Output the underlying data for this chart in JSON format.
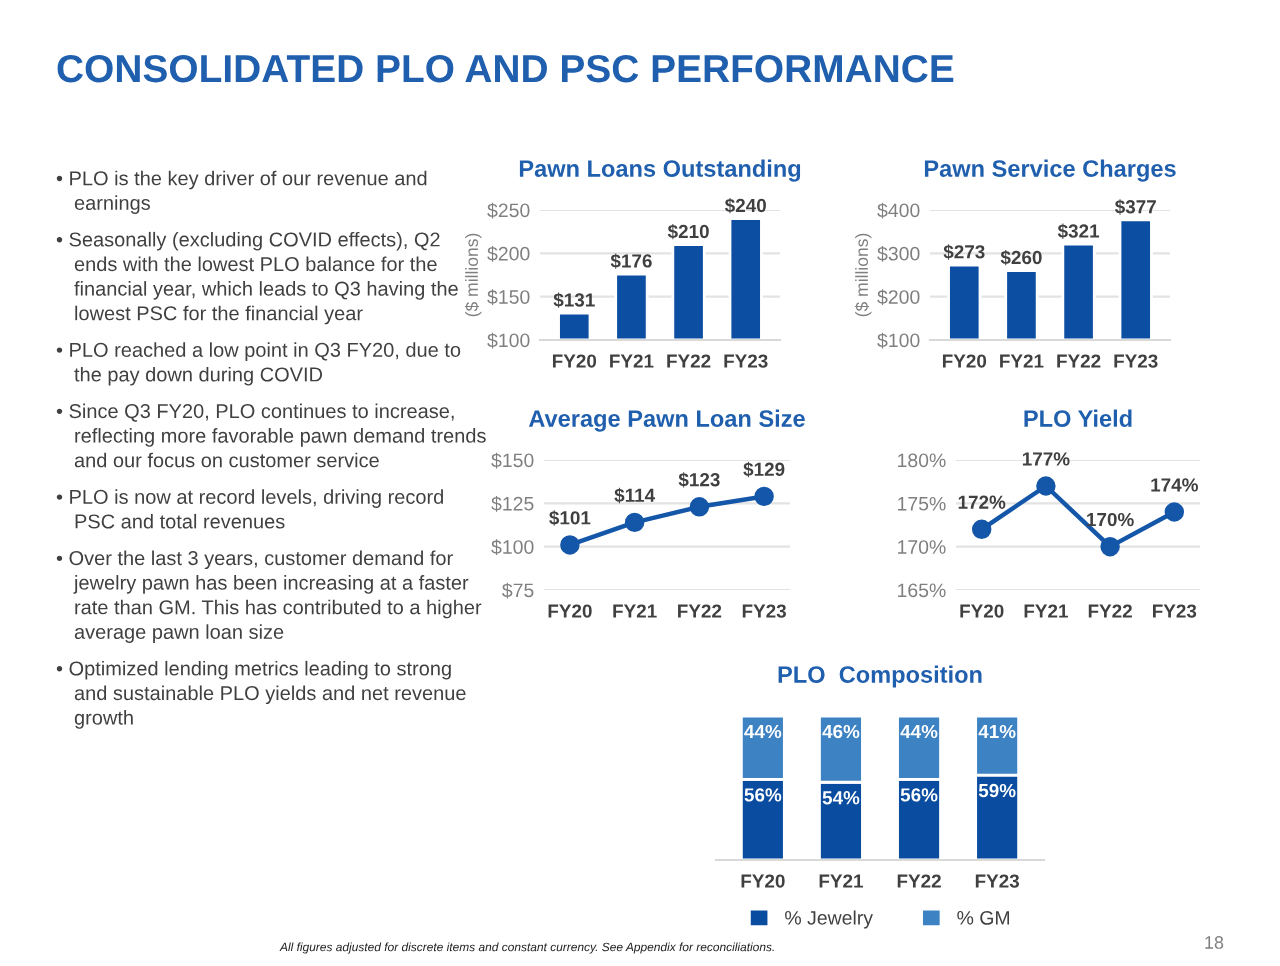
{
  "chart_data": [
    {
      "type": "other",
      "title": "CONSOLIDATED PLO AND PSC PERFORMANCE",
      "annotations": [
        "• PLO is the key driver of our revenue and earnings",
        "• Seasonally (excluding COVID effects), Q2 ends with the lowest PLO balance for the financial year, which leads to Q3 having the lowest PSC for the financial year",
        "• PLO reached a low point in Q3 FY20, due to the pay down during COVID",
        "• Since Q3 FY20, PLO continues to increase, reflecting more favorable pawn demand trends and our focus on customer service",
        "• PLO is now at record levels, driving record PSC and total revenues",
        "• Over the last 3 years, customer demand for jewelry pawn has been increasing at a faster rate than GM. This has contributed to a higher average pawn loan size",
        "• Optimized lending metrics leading to strong and sustainable PLO yields and net revenue growth"
      ]
    },
    {
      "type": "bar",
      "title": "Pawn Loans Outstanding",
      "ylabel": "($ millions)",
      "categories": [
        "FY20",
        "FY21",
        "FY22",
        "FY23"
      ],
      "values": [
        131,
        176,
        210,
        240
      ],
      "value_labels": [
        "$131",
        "$176",
        "$210",
        "$240"
      ],
      "color": "#0b4ea2",
      "ylim": [
        100,
        250
      ],
      "yticks": [
        {
          "value": 100,
          "label": "$100"
        },
        {
          "value": 150,
          "label": "$150"
        },
        {
          "value": 200,
          "label": "$200"
        },
        {
          "value": 250,
          "label": "$250"
        }
      ],
      "grid": "y"
    },
    {
      "type": "bar",
      "title": "Pawn Service Charges",
      "ylabel": "($ millions)",
      "categories": [
        "FY20",
        "FY21",
        "FY22",
        "FY23"
      ],
      "values": [
        273,
        260,
        321,
        377
      ],
      "value_labels": [
        "$273",
        "$260",
        "$321",
        "$377"
      ],
      "color": "#0b4ea2",
      "ylim": [
        100,
        400
      ],
      "yticks": [
        {
          "value": 100,
          "label": "$100"
        },
        {
          "value": 200,
          "label": "$200"
        },
        {
          "value": 300,
          "label": "$300"
        },
        {
          "value": 400,
          "label": "$400"
        }
      ],
      "grid": "y"
    },
    {
      "type": "line",
      "title": "Average Pawn Loan Size",
      "categories": [
        "FY20",
        "FY21",
        "FY22",
        "FY23"
      ],
      "values": [
        101,
        114,
        123,
        129
      ],
      "value_labels": [
        "$101",
        "$114",
        "$123",
        "$129"
      ],
      "color": "#1456a8",
      "marker": "circle",
      "line_style": "solid",
      "ylim": [
        75,
        150
      ],
      "yticks": [
        {
          "value": 75,
          "label": "$75"
        },
        {
          "value": 100,
          "label": "$100"
        },
        {
          "value": 125,
          "label": "$125"
        },
        {
          "value": 150,
          "label": "$150"
        }
      ],
      "grid": "y"
    },
    {
      "type": "line",
      "title": "PLO Yield",
      "categories": [
        "FY20",
        "FY21",
        "FY22",
        "FY23"
      ],
      "values": [
        172,
        177,
        170,
        174
      ],
      "value_labels": [
        "172%",
        "177%",
        "170%",
        "174%"
      ],
      "color": "#1456a8",
      "marker": "circle",
      "line_style": "solid",
      "ylim": [
        165,
        180
      ],
      "yticks": [
        {
          "value": 165,
          "label": "165%"
        },
        {
          "value": 170,
          "label": "170%"
        },
        {
          "value": 175,
          "label": "175%"
        },
        {
          "value": 180,
          "label": "180%"
        }
      ],
      "grid": "y"
    },
    {
      "type": "bar",
      "title": "PLO  Composition",
      "stacked": true,
      "categories": [
        "FY20",
        "FY21",
        "FY22",
        "FY23"
      ],
      "tick_labels": "x",
      "legend": "bottom",
      "series": [
        {
          "name": "% Jewelry",
          "color": "#0a4da0",
          "values": [
            56,
            54,
            56,
            59
          ],
          "value_labels": [
            "56%",
            "54%",
            "56%",
            "59%"
          ]
        },
        {
          "name": "% GM",
          "color": "#3d82c2",
          "values": [
            44,
            46,
            44,
            41
          ],
          "value_labels": [
            "44%",
            "46%",
            "44%",
            "41%"
          ]
        }
      ],
      "annotations": [
        "All figures adjusted for discrete items and constant currency. See Appendix for reconciliations.",
        "18"
      ]
    }
  ]
}
